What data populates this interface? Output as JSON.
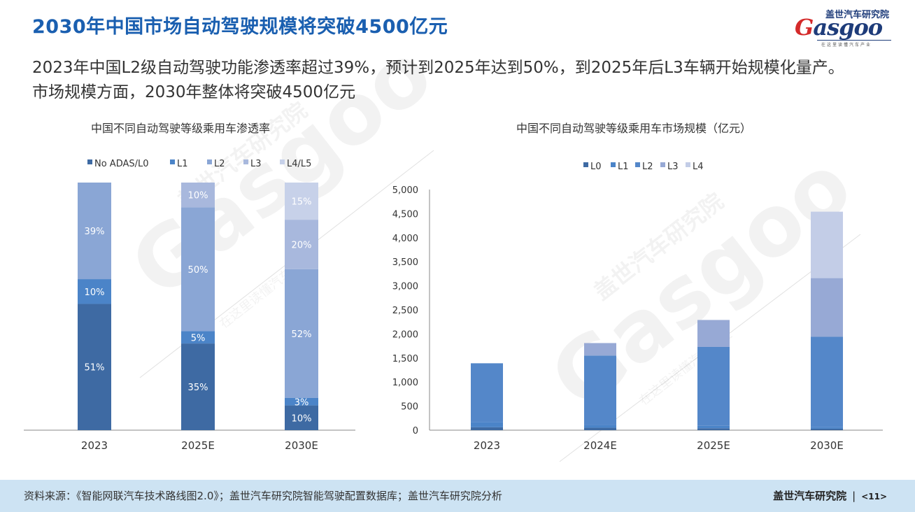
{
  "page": {
    "title": "2030年中国市场自动驾驶规模将突破4500亿元",
    "description_lines": [
      "2023年中国L2级自动驾驶功能渗透率超过39%，预计到2025年达到50%，到2025年后L3车辆开始规模化量产。",
      "市场规模方面，2030年整体将突破4500亿元"
    ],
    "logo": {
      "cn": "盖世汽车研究院",
      "word_first": "G",
      "word_rest": "asgoo",
      "sub": "在这里读懂汽车产业"
    },
    "footer": {
      "source": "资料来源：《智能网联汽车技术路线图2.0》；盖世汽车研究院智能驾驶配置数据库；盖世汽车研究院分析",
      "brand": "盖世汽车研究院",
      "separator": "|",
      "page_no": "<11>"
    },
    "watermark": {
      "cn": "盖世汽车研究院",
      "word": "Gasgoo",
      "sub": "在这里读懂汽车产业"
    }
  },
  "colors": {
    "title": "#1a5fb0",
    "L0": "#3e6aa3",
    "L1": "#4b84c8",
    "L2": "#8aa6d5",
    "L3": "#a8b8dd",
    "L4": "#c7d1e9",
    "footer_bg": "#cde3f3"
  },
  "chart_data": [
    {
      "type": "bar",
      "stacked": true,
      "percent": true,
      "title": "中国不同自动驾驶等级乘用车渗透率",
      "categories": [
        "2023",
        "2025E",
        "2030E"
      ],
      "legend_position": "top",
      "series": [
        {
          "name": "No ADAS/L0",
          "color": "#3e6aa3",
          "values": [
            51,
            35,
            10
          ],
          "labels": [
            "51%",
            "35%",
            "10%"
          ]
        },
        {
          "name": "L1",
          "color": "#4b84c8",
          "values": [
            10,
            5,
            3
          ],
          "labels": [
            "10%",
            "5%",
            "3%"
          ]
        },
        {
          "name": "L2",
          "color": "#8aa6d5",
          "values": [
            39,
            50,
            52
          ],
          "labels": [
            "39%",
            "50%",
            "52%"
          ]
        },
        {
          "name": "L3",
          "color": "#a8b8dd",
          "values": [
            0,
            10,
            20
          ],
          "labels": [
            "",
            "10%",
            "20%"
          ]
        },
        {
          "name": "L4/L5",
          "color": "#c7d1e9",
          "values": [
            0,
            0,
            15
          ],
          "labels": [
            "",
            "",
            "15%"
          ]
        }
      ]
    },
    {
      "type": "bar",
      "stacked": true,
      "title": "中国不同自动驾驶等级乘用车市场规模（亿元）",
      "categories": [
        "2023",
        "2024E",
        "2025E",
        "2030E"
      ],
      "ylim": [
        0,
        5000
      ],
      "yticks": [
        0,
        500,
        1000,
        1500,
        2000,
        2500,
        3000,
        3500,
        4000,
        4500,
        5000
      ],
      "ytick_labels": [
        "0",
        "500",
        "1,000",
        "1,500",
        "2,000",
        "2,500",
        "3,000",
        "3,500",
        "4,000",
        "4,500",
        "5,000"
      ],
      "legend_position": "top",
      "series": [
        {
          "name": "L0",
          "color": "#3e6aa3",
          "values": [
            60,
            50,
            40,
            30
          ]
        },
        {
          "name": "L1",
          "color": "#4b84c8",
          "values": [
            110,
            60,
            50,
            30
          ]
        },
        {
          "name": "L2",
          "color": "#5487c9",
          "values": [
            1220,
            1440,
            1640,
            1880
          ]
        },
        {
          "name": "L3",
          "color": "#97a9d5",
          "values": [
            0,
            260,
            560,
            1220
          ]
        },
        {
          "name": "L4",
          "color": "#c3cde7",
          "values": [
            0,
            0,
            0,
            1380
          ]
        }
      ]
    }
  ]
}
